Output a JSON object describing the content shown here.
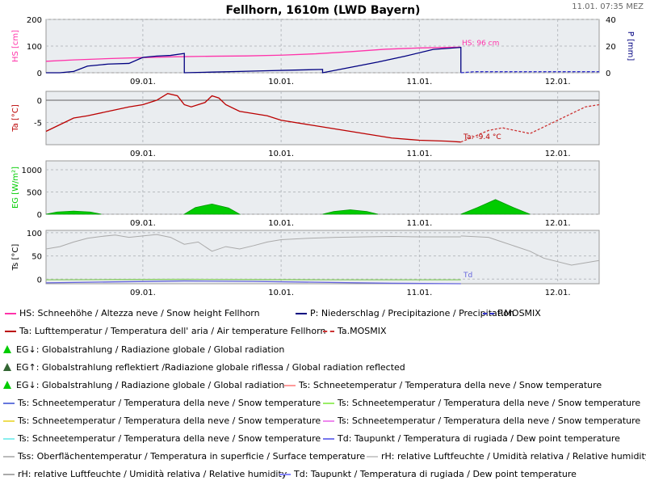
{
  "header": {
    "title": "Fellhorn, 1610m (LWD Bayern)",
    "timestamp": "11.01. 07:35 MEZ"
  },
  "colors": {
    "hs": "#ff33aa",
    "precip": "#000080",
    "precip_mosmix": "#3333cc",
    "ta": "#bb0000",
    "ta_mosmix": "#cc3333",
    "eg": "#00cc00",
    "rh": "#aaaaaa",
    "td": "#6666dd",
    "plot_bg": "#eaedf0",
    "grid": "#b8bcc0",
    "zero_line": "#606060"
  },
  "chart_data": [
    {
      "type": "line",
      "panel": "snow_precip",
      "x_tick_labels": [
        "09.01.",
        "10.01.",
        "11.01.",
        "12.01."
      ],
      "x_tick_days": [
        9,
        10,
        11,
        12
      ],
      "xlim": [
        8.3,
        12.3
      ],
      "ylabel": "HS [cm]",
      "ylabel_right": "P [mm]",
      "ylim": [
        0,
        200
      ],
      "yticks": [
        0,
        100,
        200
      ],
      "ylim_right": [
        0,
        40
      ],
      "yticks_right": [
        0,
        20,
        40
      ],
      "annotation": "HS: 96 cm",
      "series": [
        {
          "name": "HS",
          "axis": "left",
          "x": [
            8.3,
            8.5,
            8.75,
            9.0,
            9.25,
            9.5,
            9.75,
            10.0,
            10.25,
            10.5,
            10.75,
            11.0,
            11.3
          ],
          "y": [
            43,
            48,
            53,
            57,
            60,
            62,
            63,
            66,
            71,
            79,
            88,
            93,
            96
          ]
        },
        {
          "name": "P",
          "axis": "right",
          "x": [
            8.3,
            8.4,
            8.5,
            8.6,
            8.75,
            8.9,
            9.0,
            9.1,
            9.2,
            9.3,
            9.3,
            9.5,
            9.7,
            9.9,
            10.1,
            10.3,
            10.3,
            10.5,
            10.7,
            10.9,
            11.1,
            11.3,
            11.3
          ],
          "y": [
            0,
            0,
            1,
            5,
            6.5,
            7,
            11.5,
            12.5,
            13,
            14.5,
            0,
            0.5,
            1,
            1.5,
            2,
            2.5,
            0,
            4,
            8,
            12.5,
            17.5,
            19,
            0
          ]
        },
        {
          "name": "P.MOSMIX",
          "axis": "right",
          "x": [
            11.3,
            11.4,
            12.3
          ],
          "y": [
            0,
            0.8,
            0.8
          ]
        }
      ]
    },
    {
      "type": "line",
      "panel": "temperature",
      "x_tick_labels": [
        "09.01.",
        "10.01.",
        "11.01.",
        "12.01."
      ],
      "x_tick_days": [
        9,
        10,
        11,
        12
      ],
      "xlim": [
        8.3,
        12.3
      ],
      "ylabel": "Ta [°C]",
      "ylim": [
        -10,
        2
      ],
      "yticks": [
        -5,
        0
      ],
      "annotation": "Ta: -9.4 °C",
      "series": [
        {
          "name": "Ta",
          "x": [
            8.3,
            8.4,
            8.5,
            8.6,
            8.75,
            8.9,
            9.0,
            9.1,
            9.18,
            9.25,
            9.3,
            9.35,
            9.45,
            9.5,
            9.55,
            9.6,
            9.7,
            9.8,
            9.9,
            10.0,
            10.2,
            10.4,
            10.6,
            10.8,
            11.0,
            11.2,
            11.3
          ],
          "y": [
            -7,
            -5.5,
            -4,
            -3.5,
            -2.5,
            -1.5,
            -1,
            0,
            1.5,
            1,
            -1,
            -1.5,
            -0.5,
            1,
            0.5,
            -1,
            -2.5,
            -3,
            -3.5,
            -4.5,
            -5.5,
            -6.5,
            -7.5,
            -8.5,
            -9.0,
            -9.2,
            -9.4
          ]
        },
        {
          "name": "Ta.MOSMIX",
          "x": [
            11.3,
            11.5,
            11.6,
            11.8,
            12.0,
            12.2,
            12.3
          ],
          "y": [
            -9.4,
            -6.8,
            -6.2,
            -7.5,
            -4.5,
            -1.5,
            -1.0
          ]
        }
      ]
    },
    {
      "type": "area",
      "panel": "radiation",
      "x_tick_labels": [
        "09.01.",
        "10.01.",
        "11.01.",
        "12.01."
      ],
      "x_tick_days": [
        9,
        10,
        11,
        12
      ],
      "xlim": [
        8.3,
        12.3
      ],
      "ylabel": "EG [W/m²]",
      "ylim": [
        0,
        1200
      ],
      "yticks": [
        0,
        500,
        1000
      ],
      "series": [
        {
          "name": "EG",
          "x": [
            8.3,
            8.38,
            8.5,
            8.62,
            8.7
          ],
          "y": [
            0,
            50,
            70,
            50,
            0
          ]
        },
        {
          "name": "EG",
          "x": [
            9.3,
            9.38,
            9.5,
            9.62,
            9.7
          ],
          "y": [
            0,
            150,
            230,
            140,
            0
          ]
        },
        {
          "name": "EG",
          "x": [
            10.3,
            10.38,
            10.5,
            10.62,
            10.7
          ],
          "y": [
            0,
            60,
            100,
            60,
            0
          ]
        },
        {
          "name": "EG",
          "x": [
            11.3,
            11.42,
            11.55,
            11.68,
            11.8
          ],
          "y": [
            0,
            150,
            330,
            150,
            0
          ]
        }
      ]
    },
    {
      "type": "line",
      "panel": "snowpack_humidity",
      "x_tick_labels": [
        "09.01.",
        "10.01.",
        "11.01.",
        "12.01."
      ],
      "x_tick_days": [
        9,
        10,
        11,
        12
      ],
      "xlim": [
        8.3,
        12.3
      ],
      "ylabel": "Ts [°C]",
      "ylim": [
        -10,
        105
      ],
      "yticks": [
        0,
        50,
        100
      ],
      "annotation": "Td",
      "series": [
        {
          "name": "rH",
          "x": [
            8.3,
            8.4,
            8.5,
            8.6,
            8.7,
            8.8,
            8.9,
            9.0,
            9.1,
            9.2,
            9.3,
            9.4,
            9.5,
            9.6,
            9.7,
            9.8,
            9.9,
            10.0,
            10.2,
            10.4,
            10.6,
            10.8,
            11.0,
            11.3
          ],
          "y": [
            65,
            70,
            80,
            88,
            92,
            95,
            90,
            93,
            96,
            90,
            75,
            80,
            60,
            70,
            65,
            72,
            80,
            85,
            88,
            90,
            91,
            92,
            91,
            91
          ]
        },
        {
          "name": "rH",
          "x": [
            11.3,
            11.5,
            11.6,
            11.8,
            11.9,
            12.1,
            12.3
          ],
          "y": [
            93,
            90,
            80,
            60,
            45,
            30,
            40
          ]
        },
        {
          "name": "Ts",
          "x": [
            8.3,
            8.8,
            9.3,
            9.8,
            10.3,
            10.8,
            11.3
          ],
          "y": [
            -1.5,
            -1,
            -0.5,
            -1,
            -1.5,
            -1.5,
            -1.5
          ]
        },
        {
          "name": "Td",
          "x": [
            8.3,
            8.8,
            9.3,
            9.8,
            10.3,
            10.8,
            11.3
          ],
          "y": [
            -8,
            -6,
            -4,
            -5,
            -7,
            -9,
            -10
          ]
        }
      ]
    }
  ],
  "legend": {
    "hs": "HS: Schneehöhe / Altezza neve / Snow height  Fellhorn",
    "p": "P: Niederschlag / Precipitazione / Precipitation",
    "p_mosmix": "P.MOSMIX",
    "ta": "Ta: Lufttemperatur / Temperatura dell' aria / Air temperature  Fellhorn",
    "ta_mosmix": "Ta.MOSMIX",
    "eg_down": "EG↓: Globalstrahlung / Radiazione globale / Global radiation",
    "eg_up": "EG↑: Globalstrahlung reflektiert /Radiazione globale riflessa / Global radiation reflected",
    "eg_down2": "EG↓: Globalstrahlung / Radiazione globale / Global radiation",
    "ts1": "Ts: Schneetemperatur / Temperatura della neve / Snow temperature",
    "ts2": "Ts: Schneetemperatur / Temperatura della neve / Snow temperature",
    "ts3": "Ts: Schneetemperatur / Temperatura della neve / Snow temperature",
    "ts4": "Ts: Schneetemperatur / Temperatura della neve / Snow temperature",
    "ts5": "Ts: Schneetemperatur / Temperatura della neve / Snow temperature",
    "ts6": "Ts: Schneetemperatur / Temperatura della neve / Snow temperature",
    "td1": "Td: Taupunkt / Temperatura di rugiada / Dew point temperature",
    "tss": "Tss: Oberflächentemperatur / Temperatura in superficie / Surface temperature",
    "rh1": "rH: relative Luftfeuchte / Umidità relativa / Relative humidity",
    "rh2": "rH: relative Luftfeuchte / Umidità relativa / Relative humidity",
    "td2": "Td: Taupunkt / Temperatura di rugiada / Dew point temperature"
  },
  "legend_colors": {
    "hs": "#ff33aa",
    "p": "#000080",
    "p_mosmix": "#3333cc",
    "ta": "#bb0000",
    "ta_mosmix": "#cc3333",
    "eg_down": "#00cc00",
    "eg_up": "#336633",
    "eg_down2": "#00cc00",
    "ts1": "#ff9999",
    "ts2": "#6677dd",
    "ts3": "#99ee66",
    "ts4": "#eedd55",
    "ts5": "#ee88ee",
    "ts6": "#88eeee",
    "td1": "#7777ee",
    "tss": "#bbbbbb",
    "rh1": "#cccccc",
    "rh2": "#aaaaaa",
    "td2": "#8888ff"
  }
}
